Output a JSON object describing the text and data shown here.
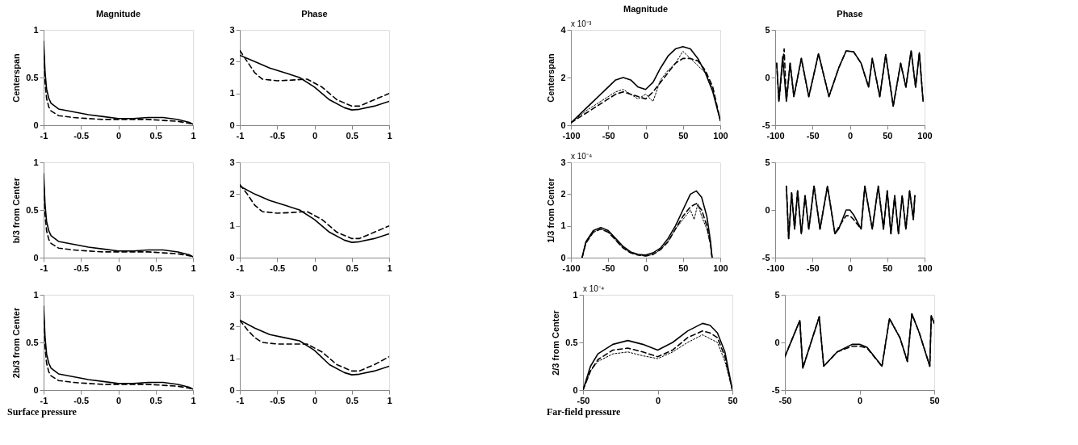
{
  "chart_data": [
    {
      "type": "line",
      "title": "Magnitude",
      "ylabel": "Centerspan",
      "xlim": [
        -1,
        1
      ],
      "xticks": [
        -1,
        -0.5,
        0,
        0.5,
        1
      ],
      "ylim": [
        0,
        1
      ],
      "yticks": [
        0,
        0.5,
        1
      ],
      "series": [
        {
          "color": "#000000",
          "line_style": "solid",
          "x": [
            -1,
            -0.98,
            -0.96,
            -0.93,
            -0.9,
            -0.8,
            -0.6,
            -0.4,
            -0.2,
            0,
            0.2,
            0.4,
            0.6,
            0.8,
            0.95,
            1
          ],
          "values": [
            0.88,
            0.55,
            0.38,
            0.28,
            0.23,
            0.17,
            0.14,
            0.11,
            0.09,
            0.07,
            0.07,
            0.08,
            0.08,
            0.06,
            0.03,
            0.01
          ]
        },
        {
          "color": "#000000",
          "line_style": "dashed",
          "x": [
            -1,
            -0.98,
            -0.96,
            -0.93,
            -0.9,
            -0.8,
            -0.6,
            -0.4,
            -0.2,
            0,
            0.2,
            0.4,
            0.6,
            0.8,
            0.95,
            1
          ],
          "values": [
            0.82,
            0.45,
            0.28,
            0.19,
            0.15,
            0.1,
            0.08,
            0.07,
            0.06,
            0.06,
            0.06,
            0.06,
            0.05,
            0.04,
            0.02,
            0.01
          ]
        }
      ]
    },
    {
      "type": "line",
      "title": "Phase",
      "xlim": [
        -1,
        1
      ],
      "xticks": [
        -1,
        -0.5,
        0,
        0.5,
        1
      ],
      "ylim": [
        0,
        3
      ],
      "yticks": [
        0,
        1,
        2,
        3
      ],
      "series": [
        {
          "color": "#000000",
          "line_style": "solid",
          "x": [
            -1,
            -0.8,
            -0.6,
            -0.4,
            -0.2,
            0,
            0.2,
            0.4,
            0.5,
            0.6,
            0.8,
            1
          ],
          "values": [
            2.2,
            2.0,
            1.8,
            1.65,
            1.5,
            1.2,
            0.8,
            0.55,
            0.48,
            0.5,
            0.6,
            0.75
          ]
        },
        {
          "color": "#000000",
          "line_style": "dashed",
          "x": [
            -1,
            -0.9,
            -0.8,
            -0.7,
            -0.5,
            -0.3,
            -0.1,
            0.1,
            0.3,
            0.5,
            0.6,
            0.8,
            1
          ],
          "values": [
            2.35,
            2.0,
            1.65,
            1.45,
            1.4,
            1.42,
            1.45,
            1.2,
            0.8,
            0.6,
            0.6,
            0.8,
            1.0
          ]
        }
      ]
    },
    {
      "type": "line",
      "title": "Magnitude",
      "ylabel": "Centerspan",
      "annotations": [
        "x 10⁻³"
      ],
      "xlim": [
        -100,
        100
      ],
      "xticks": [
        -100,
        -50,
        0,
        50,
        100
      ],
      "ylim": [
        0,
        4
      ],
      "yticks": [
        0,
        2,
        4
      ],
      "series": [
        {
          "color": "#000000",
          "line_style": "solid",
          "x": [
            -100,
            -80,
            -60,
            -40,
            -30,
            -20,
            -10,
            0,
            10,
            20,
            30,
            40,
            50,
            60,
            70,
            80,
            90,
            100
          ],
          "values": [
            0.1,
            0.7,
            1.3,
            1.9,
            2.0,
            1.9,
            1.6,
            1.5,
            1.8,
            2.4,
            2.9,
            3.2,
            3.3,
            3.2,
            2.8,
            2.2,
            1.4,
            0.2
          ]
        },
        {
          "color": "#000000",
          "line_style": "dashed",
          "x": [
            -100,
            -80,
            -60,
            -40,
            -30,
            -20,
            -10,
            0,
            10,
            20,
            30,
            40,
            50,
            60,
            70,
            80,
            90,
            100
          ],
          "values": [
            0.1,
            0.5,
            0.9,
            1.3,
            1.4,
            1.3,
            1.2,
            1.1,
            1.4,
            1.8,
            2.2,
            2.6,
            2.8,
            2.8,
            2.7,
            2.3,
            1.6,
            0.2
          ]
        },
        {
          "color": "#000000",
          "line_style": "dotted",
          "x": [
            -100,
            -80,
            -60,
            -40,
            -30,
            -20,
            -10,
            0,
            10,
            20,
            30,
            40,
            50,
            60,
            70,
            80,
            90,
            100
          ],
          "values": [
            0.1,
            0.6,
            1.0,
            1.4,
            1.5,
            1.3,
            1.1,
            1.3,
            1.0,
            1.9,
            2.3,
            2.6,
            3.1,
            2.8,
            2.5,
            2.2,
            1.5,
            0.2
          ]
        }
      ]
    },
    {
      "type": "line",
      "title": "Phase",
      "xlim": [
        -100,
        100
      ],
      "xticks": [
        -100,
        -50,
        0,
        50,
        100
      ],
      "ylim": [
        -5,
        5
      ],
      "yticks": [
        -5,
        0,
        5
      ],
      "series": [
        {
          "color": "#000000",
          "line_style": "solid",
          "x": [
            -98,
            -95,
            -90,
            -85,
            -80,
            -75,
            -65,
            -55,
            -42,
            -28,
            -15,
            -5,
            5,
            15,
            25,
            30,
            40,
            48,
            58,
            68,
            75,
            82,
            88,
            93,
            98
          ],
          "values": [
            1.5,
            -2.5,
            2.2,
            -2.5,
            1.5,
            -2,
            2,
            -2,
            2.5,
            -2,
            1,
            2.8,
            2.7,
            1.5,
            -1,
            2,
            -2,
            2.4,
            -3,
            1.5,
            -1,
            2.8,
            -1,
            2.6,
            -2.5
          ]
        },
        {
          "color": "#000000",
          "line_style": "dashed",
          "x": [
            -98,
            -95,
            -88,
            -85,
            -80,
            -75,
            -65,
            -55,
            -42,
            -28,
            -15,
            -5,
            5,
            15,
            25,
            30,
            40,
            48,
            58,
            68,
            75,
            82,
            88,
            93,
            98
          ],
          "values": [
            1.5,
            -2.5,
            3,
            -2.5,
            1.5,
            -2,
            2,
            -2,
            2.5,
            -2,
            1,
            2.8,
            2.7,
            1.5,
            -1,
            2,
            -2,
            2.4,
            -3,
            1.5,
            -1,
            2.8,
            -1,
            2.6,
            -2.5
          ]
        }
      ]
    },
    {
      "type": "line",
      "ylabel": "b/3 from Center",
      "xlim": [
        -1,
        1
      ],
      "xticks": [
        -1,
        -0.5,
        0,
        0.5,
        1
      ],
      "ylim": [
        0,
        1
      ],
      "yticks": [
        0,
        0.5,
        1
      ],
      "series": [
        {
          "color": "#000000",
          "line_style": "solid",
          "x": [
            -1,
            -0.98,
            -0.96,
            -0.93,
            -0.9,
            -0.8,
            -0.6,
            -0.4,
            -0.2,
            0,
            0.2,
            0.4,
            0.6,
            0.8,
            0.95,
            1
          ],
          "values": [
            0.88,
            0.55,
            0.38,
            0.28,
            0.23,
            0.17,
            0.14,
            0.11,
            0.09,
            0.07,
            0.07,
            0.08,
            0.08,
            0.06,
            0.03,
            0.01
          ]
        },
        {
          "color": "#000000",
          "line_style": "dashed",
          "x": [
            -1,
            -0.98,
            -0.96,
            -0.93,
            -0.9,
            -0.8,
            -0.6,
            -0.4,
            -0.2,
            0,
            0.2,
            0.4,
            0.6,
            0.8,
            0.95,
            1
          ],
          "values": [
            0.82,
            0.45,
            0.28,
            0.19,
            0.15,
            0.1,
            0.08,
            0.07,
            0.06,
            0.06,
            0.06,
            0.06,
            0.05,
            0.04,
            0.02,
            0.01
          ]
        }
      ]
    },
    {
      "type": "line",
      "xlim": [
        -1,
        1
      ],
      "xticks": [
        -1,
        -0.5,
        0,
        0.5,
        1
      ],
      "ylim": [
        0,
        3
      ],
      "yticks": [
        0,
        1,
        2,
        3
      ],
      "series": [
        {
          "color": "#000000",
          "line_style": "solid",
          "x": [
            -1,
            -0.8,
            -0.6,
            -0.4,
            -0.2,
            0,
            0.2,
            0.4,
            0.5,
            0.6,
            0.8,
            1
          ],
          "values": [
            2.25,
            2.0,
            1.8,
            1.65,
            1.5,
            1.2,
            0.8,
            0.55,
            0.48,
            0.5,
            0.6,
            0.75
          ]
        },
        {
          "color": "#000000",
          "line_style": "dashed",
          "x": [
            -1,
            -0.9,
            -0.8,
            -0.7,
            -0.5,
            -0.3,
            -0.1,
            0.1,
            0.3,
            0.5,
            0.6,
            0.8,
            1
          ],
          "values": [
            2.3,
            2.0,
            1.65,
            1.45,
            1.4,
            1.42,
            1.45,
            1.2,
            0.8,
            0.6,
            0.6,
            0.8,
            1.0
          ]
        }
      ]
    },
    {
      "type": "line",
      "ylabel": "1/3 from Center",
      "annotations": [
        "x 10⁻⁴"
      ],
      "xlim": [
        -100,
        100
      ],
      "xticks": [
        -100,
        -50,
        0,
        50,
        100
      ],
      "ylim": [
        0,
        3
      ],
      "yticks": [
        0,
        1,
        2,
        3
      ],
      "series": [
        {
          "color": "#000000",
          "line_style": "solid",
          "x": [
            -85,
            -80,
            -70,
            -60,
            -50,
            -40,
            -30,
            -20,
            -10,
            0,
            10,
            20,
            30,
            40,
            50,
            60,
            68,
            75,
            82,
            87,
            89
          ],
          "values": [
            0,
            0.5,
            0.85,
            0.95,
            0.85,
            0.6,
            0.35,
            0.18,
            0.1,
            0.08,
            0.15,
            0.3,
            0.6,
            1.0,
            1.5,
            2.0,
            2.1,
            1.9,
            1.3,
            0.5,
            0
          ]
        },
        {
          "color": "#000000",
          "line_style": "dashed",
          "x": [
            -85,
            -80,
            -70,
            -60,
            -50,
            -40,
            -30,
            -20,
            -10,
            0,
            10,
            20,
            30,
            40,
            50,
            60,
            68,
            75,
            82,
            87,
            89
          ],
          "values": [
            0,
            0.45,
            0.8,
            0.9,
            0.8,
            0.55,
            0.3,
            0.15,
            0.08,
            0.05,
            0.1,
            0.25,
            0.5,
            0.9,
            1.3,
            1.6,
            1.7,
            1.5,
            1.0,
            0.4,
            0
          ]
        },
        {
          "color": "#000000",
          "line_style": "dotted",
          "x": [
            -85,
            -80,
            -70,
            -60,
            -50,
            -40,
            -30,
            -20,
            -10,
            0,
            10,
            20,
            30,
            40,
            50,
            60,
            65,
            70,
            75,
            82,
            87,
            89
          ],
          "values": [
            0,
            0.45,
            0.8,
            0.9,
            0.8,
            0.55,
            0.3,
            0.15,
            0.08,
            0.05,
            0.1,
            0.25,
            0.5,
            0.9,
            1.2,
            1.5,
            1.2,
            1.7,
            1.3,
            0.9,
            0.4,
            0
          ]
        }
      ]
    },
    {
      "type": "line",
      "xlim": [
        -100,
        100
      ],
      "xticks": [
        -100,
        -50,
        0,
        50,
        100
      ],
      "ylim": [
        -5,
        5
      ],
      "yticks": [
        -5,
        0,
        5
      ],
      "series": [
        {
          "color": "#000000",
          "line_style": "solid",
          "x": [
            -85,
            -82,
            -78,
            -74,
            -70,
            -65,
            -60,
            -55,
            -48,
            -40,
            -30,
            -20,
            -15,
            -5,
            0,
            5,
            15,
            20,
            30,
            38,
            45,
            50,
            55,
            60,
            65,
            70,
            75,
            80,
            85,
            87
          ],
          "values": [
            2.5,
            -3,
            1.8,
            -2,
            2,
            -2.5,
            1.5,
            -2,
            2.5,
            -2,
            2.5,
            -2.5,
            -2,
            0,
            0,
            -0.5,
            -2,
            2.5,
            -2,
            2.5,
            -2,
            2,
            -2.5,
            1.5,
            -2.5,
            1.5,
            -2,
            2,
            -1,
            1.5
          ]
        },
        {
          "color": "#000000",
          "line_style": "dashed",
          "x": [
            -85,
            -82,
            -78,
            -74,
            -70,
            -65,
            -60,
            -55,
            -48,
            -40,
            -30,
            -20,
            -15,
            -5,
            0,
            5,
            15,
            20,
            30,
            38,
            45,
            50,
            55,
            60,
            65,
            70,
            75,
            80,
            85,
            87
          ],
          "values": [
            2.5,
            -3,
            1.8,
            -2,
            2,
            -2.5,
            1.5,
            -2,
            2.5,
            -2,
            2.5,
            -2.5,
            -1.8,
            -0.6,
            -0.6,
            -1,
            -2,
            2.5,
            -2,
            2.5,
            -2,
            2,
            -2.5,
            1.5,
            -2.5,
            1.5,
            -2,
            2,
            -1,
            1.5
          ]
        }
      ]
    },
    {
      "type": "line",
      "ylabel": "2b/3 from Center",
      "annotations": [
        "Surface pressure"
      ],
      "xlim": [
        -1,
        1
      ],
      "xticks": [
        -1,
        -0.5,
        0,
        0.5,
        1
      ],
      "ylim": [
        0,
        1
      ],
      "yticks": [
        0,
        0.5,
        1
      ],
      "series": [
        {
          "color": "#000000",
          "line_style": "solid",
          "x": [
            -1,
            -0.98,
            -0.96,
            -0.93,
            -0.9,
            -0.8,
            -0.6,
            -0.4,
            -0.2,
            0,
            0.2,
            0.4,
            0.6,
            0.8,
            0.95,
            1
          ],
          "values": [
            0.88,
            0.55,
            0.38,
            0.28,
            0.23,
            0.17,
            0.14,
            0.11,
            0.09,
            0.07,
            0.07,
            0.08,
            0.08,
            0.06,
            0.03,
            0.01
          ]
        },
        {
          "color": "#000000",
          "line_style": "dashed",
          "x": [
            -1,
            -0.98,
            -0.96,
            -0.93,
            -0.9,
            -0.8,
            -0.6,
            -0.4,
            -0.2,
            0,
            0.2,
            0.4,
            0.6,
            0.8,
            0.95,
            1
          ],
          "values": [
            0.82,
            0.45,
            0.28,
            0.19,
            0.15,
            0.1,
            0.08,
            0.07,
            0.06,
            0.06,
            0.06,
            0.06,
            0.05,
            0.04,
            0.02,
            0.01
          ]
        }
      ]
    },
    {
      "type": "line",
      "xlim": [
        -1,
        1
      ],
      "xticks": [
        -1,
        -0.5,
        0,
        0.5,
        1
      ],
      "ylim": [
        0,
        3
      ],
      "yticks": [
        0,
        1,
        2,
        3
      ],
      "series": [
        {
          "color": "#000000",
          "line_style": "solid",
          "x": [
            -1,
            -0.8,
            -0.6,
            -0.4,
            -0.2,
            0,
            0.2,
            0.4,
            0.5,
            0.6,
            0.8,
            1
          ],
          "values": [
            2.2,
            1.95,
            1.75,
            1.65,
            1.55,
            1.25,
            0.8,
            0.55,
            0.48,
            0.5,
            0.6,
            0.75
          ]
        },
        {
          "color": "#000000",
          "line_style": "dashed",
          "x": [
            -1,
            -0.9,
            -0.8,
            -0.7,
            -0.5,
            -0.3,
            -0.1,
            0.1,
            0.3,
            0.5,
            0.6,
            0.8,
            1
          ],
          "values": [
            2.2,
            1.9,
            1.65,
            1.5,
            1.45,
            1.45,
            1.45,
            1.2,
            0.8,
            0.6,
            0.6,
            0.8,
            1.05
          ]
        }
      ]
    },
    {
      "type": "line",
      "ylabel": "2/3 from Center",
      "annotations": [
        "x 10⁻⁴",
        "Far-field pressure"
      ],
      "xlim": [
        -50,
        50
      ],
      "xticks": [
        -50,
        0,
        50
      ],
      "ylim": [
        0,
        1
      ],
      "yticks": [
        0,
        0.5,
        1
      ],
      "series": [
        {
          "color": "#000000",
          "line_style": "solid",
          "x": [
            -50,
            -45,
            -40,
            -30,
            -20,
            -10,
            0,
            10,
            20,
            30,
            35,
            40,
            45,
            50
          ],
          "values": [
            0,
            0.25,
            0.38,
            0.48,
            0.52,
            0.48,
            0.42,
            0.5,
            0.62,
            0.7,
            0.68,
            0.6,
            0.4,
            0
          ]
        },
        {
          "color": "#000000",
          "line_style": "dashed",
          "x": [
            -50,
            -45,
            -40,
            -30,
            -20,
            -10,
            0,
            10,
            20,
            30,
            35,
            40,
            45,
            50
          ],
          "values": [
            0,
            0.2,
            0.32,
            0.42,
            0.44,
            0.4,
            0.35,
            0.42,
            0.55,
            0.62,
            0.6,
            0.55,
            0.35,
            0
          ]
        },
        {
          "color": "#000000",
          "line_style": "dotted",
          "x": [
            -50,
            -45,
            -40,
            -30,
            -20,
            -10,
            0,
            10,
            20,
            30,
            40,
            45,
            50
          ],
          "values": [
            0,
            0.2,
            0.3,
            0.38,
            0.4,
            0.36,
            0.33,
            0.4,
            0.5,
            0.58,
            0.5,
            0.3,
            0
          ]
        }
      ]
    },
    {
      "type": "line",
      "xlim": [
        -50,
        50
      ],
      "xticks": [
        -50,
        0,
        50
      ],
      "ylim": [
        -5,
        5
      ],
      "yticks": [
        -5,
        0,
        5
      ],
      "series": [
        {
          "color": "#000000",
          "line_style": "solid",
          "x": [
            -50,
            -40,
            -38,
            -27,
            -24,
            -15,
            -5,
            0,
            5,
            15,
            20,
            27,
            32,
            35,
            40,
            47,
            48,
            50
          ],
          "values": [
            -1.5,
            2.3,
            -2.7,
            2.7,
            -2.5,
            -1,
            -0.2,
            -0.2,
            -0.5,
            -2.5,
            2.5,
            0.5,
            -2,
            3,
            1,
            -2.5,
            2.8,
            2
          ]
        },
        {
          "color": "#000000",
          "line_style": "dashed",
          "x": [
            -50,
            -40,
            -38,
            -27,
            -24,
            -15,
            -5,
            0,
            5,
            15,
            20,
            27,
            32,
            35,
            40,
            47,
            48,
            50
          ],
          "values": [
            -1.5,
            2.3,
            -2.7,
            2.7,
            -2.5,
            -1,
            -0.4,
            -0.4,
            -0.6,
            -2.5,
            2.5,
            0.5,
            -2,
            3,
            1,
            -2.5,
            2.8,
            2
          ]
        }
      ]
    }
  ]
}
